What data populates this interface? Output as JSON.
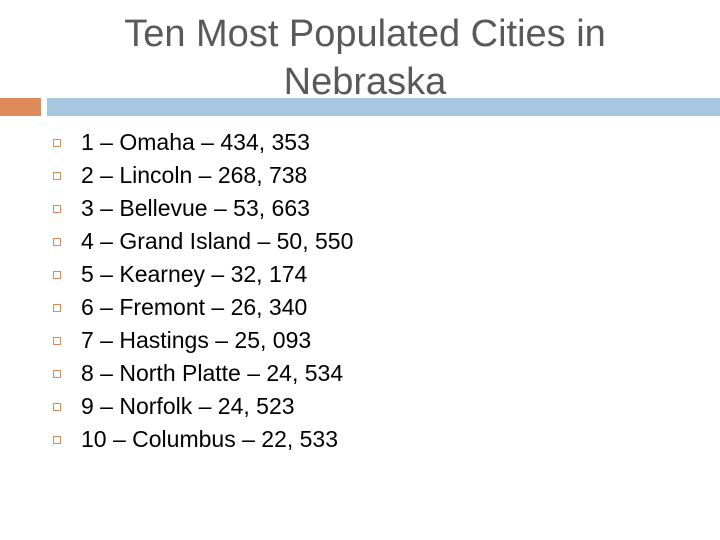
{
  "slide": {
    "title_lines": [
      "Ten Most Populated Cities in",
      "Nebraska"
    ],
    "items": [
      "1 – Omaha – 434, 353",
      "2 – Lincoln – 268, 738",
      "3 – Bellevue – 53, 663",
      "4 – Grand Island – 50, 550",
      "5 – Kearney – 32, 174",
      "6 – Fremont – 26, 340",
      "7 – Hastings – 25, 093",
      "8 – North Platte – 24, 534",
      "9 – Norfolk – 24, 523",
      "10 – Columbus – 22, 533"
    ]
  },
  "theme": {
    "accent_color": "#E08A5B",
    "rule_color": "#A7C7E0",
    "title_color": "#595959",
    "bullet_icon": "square-outline-icon"
  }
}
